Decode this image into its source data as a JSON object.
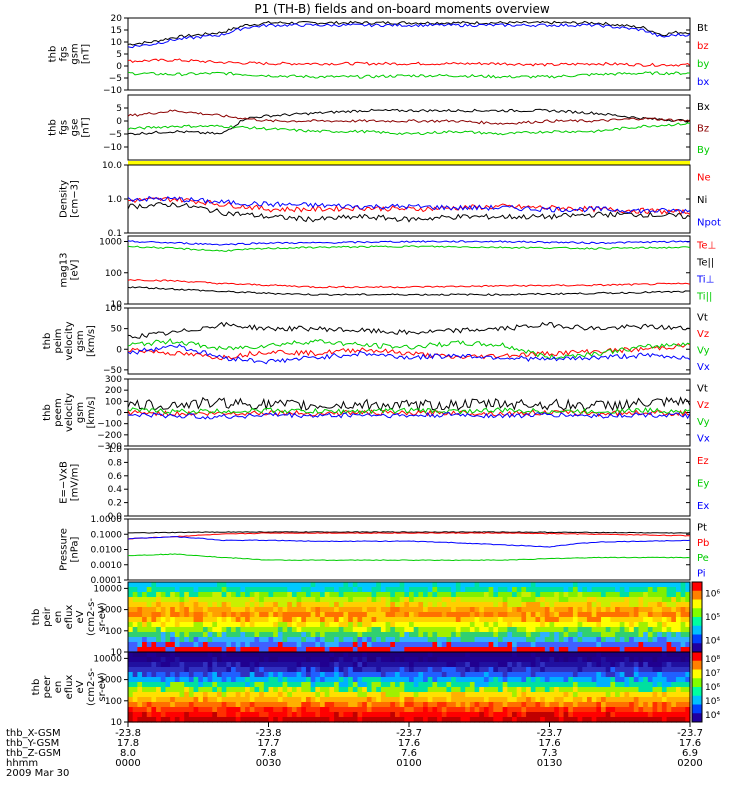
{
  "title": "P1 (TH-B) fields and on-board moments overview",
  "date_label": "2009 Mar 30",
  "chart_data": [
    {
      "type": "line",
      "ylabel": [
        "thb",
        "fgs",
        "gsm",
        "[nT]"
      ],
      "ylim": [
        -10,
        20
      ],
      "yticks": [
        -10,
        -5,
        0,
        5,
        10,
        15,
        20
      ],
      "ytick_labels": [
        "−10",
        "−5",
        "0",
        "5",
        "10",
        "15",
        "20"
      ],
      "series": [
        {
          "name": "Bt",
          "color": "#000000",
          "x": [
            0,
            5,
            10,
            15,
            20,
            25,
            30,
            40,
            50,
            60,
            70,
            80,
            90,
            100,
            110,
            114,
            117,
            120
          ],
          "y": [
            9,
            10,
            12,
            13,
            14,
            17,
            18,
            18,
            18,
            18,
            18,
            18,
            18,
            18,
            16,
            13,
            14,
            14
          ]
        },
        {
          "name": "bz",
          "color": "#ff0000",
          "x": [
            0,
            10,
            20,
            30,
            40,
            50,
            60,
            70,
            80,
            90,
            100,
            110,
            120
          ],
          "y": [
            2,
            2.5,
            1.5,
            1,
            1,
            1,
            1,
            1,
            1,
            0.5,
            1,
            0.5,
            0.5
          ]
        },
        {
          "name": "by",
          "color": "#00cc00",
          "x": [
            0,
            10,
            20,
            30,
            40,
            50,
            60,
            70,
            80,
            90,
            100,
            110,
            120
          ],
          "y": [
            -3,
            -3.5,
            -3,
            -4,
            -4.5,
            -4.5,
            -4,
            -4,
            -4.5,
            -4.5,
            -3.5,
            -3,
            -3
          ]
        },
        {
          "name": "bx",
          "color": "#0000ff",
          "x": [
            0,
            5,
            10,
            15,
            20,
            25,
            30,
            40,
            50,
            60,
            70,
            80,
            90,
            100,
            110,
            114,
            117,
            120
          ],
          "y": [
            8,
            9,
            11,
            12,
            13,
            16,
            17,
            17,
            17,
            17,
            17,
            17,
            17,
            17,
            15,
            12,
            13,
            13
          ]
        }
      ]
    },
    {
      "type": "line",
      "ylabel": [
        "thb",
        "fgs",
        "gse",
        "[nT]"
      ],
      "ylim": [
        -15,
        10
      ],
      "yticks": [
        -10,
        -5,
        0,
        5
      ],
      "ytick_labels": [
        "−10",
        "−5",
        "0",
        "5"
      ],
      "series": [
        {
          "name": "Bx",
          "color": "#000000",
          "x": [
            0,
            10,
            20,
            25,
            30,
            40,
            50,
            60,
            70,
            80,
            90,
            100,
            110,
            120
          ],
          "y": [
            -5,
            -4,
            -5,
            1,
            2,
            3,
            4,
            4,
            4,
            4,
            4,
            3,
            1,
            0
          ]
        },
        {
          "name": "Bz",
          "color": "#8b0000",
          "x": [
            0,
            10,
            20,
            30,
            40,
            50,
            60,
            70,
            80,
            90,
            100,
            110,
            120
          ],
          "y": [
            2,
            4,
            2,
            0,
            0,
            0,
            0,
            0,
            -1,
            0,
            0,
            1,
            0
          ]
        },
        {
          "name": "By",
          "color": "#00cc00",
          "x": [
            0,
            10,
            20,
            30,
            40,
            50,
            60,
            70,
            80,
            90,
            100,
            110,
            120
          ],
          "y": [
            -3,
            -2,
            -2,
            -3,
            -4,
            -4,
            -5,
            -4,
            -5,
            -4,
            -4,
            -2,
            -1
          ]
        }
      ]
    },
    {
      "type": "line",
      "yscale": "log",
      "ylabel": [
        "Density",
        "[cm−3]"
      ],
      "ylim": [
        0.1,
        10
      ],
      "yticks": [
        0.1,
        1,
        10
      ],
      "ytick_labels": [
        "0.1",
        "1.0",
        "10.0"
      ],
      "series": [
        {
          "name": "Ne",
          "color": "#ff0000",
          "x": [
            0,
            10,
            20,
            30,
            40,
            50,
            60,
            70,
            80,
            90,
            100,
            110,
            120
          ],
          "y": [
            0.9,
            1.0,
            0.7,
            0.5,
            0.5,
            0.55,
            0.5,
            0.55,
            0.6,
            0.55,
            0.5,
            0.45,
            0.4
          ]
        },
        {
          "name": "Ni",
          "color": "#000000",
          "x": [
            0,
            10,
            20,
            30,
            40,
            50,
            60,
            70,
            80,
            90,
            100,
            110,
            120
          ],
          "y": [
            0.6,
            0.7,
            0.4,
            0.3,
            0.25,
            0.3,
            0.25,
            0.3,
            0.3,
            0.3,
            0.35,
            0.35,
            0.3
          ]
        },
        {
          "name": "Npot",
          "color": "#0000ff",
          "x": [
            0,
            10,
            20,
            30,
            40,
            50,
            60,
            70,
            80,
            90,
            100,
            110,
            120
          ],
          "y": [
            1.0,
            1.0,
            0.8,
            0.7,
            0.65,
            0.6,
            0.6,
            0.55,
            0.55,
            0.5,
            0.5,
            0.45,
            0.45
          ]
        }
      ]
    },
    {
      "type": "line",
      "yscale": "log",
      "ylabel": [
        "mag13",
        "[eV]"
      ],
      "ylim": [
        10,
        1500
      ],
      "yticks": [
        10,
        100,
        1000
      ],
      "ytick_labels": [
        "10",
        "100",
        "1000"
      ],
      "series": [
        {
          "name": "Te⊥",
          "color": "#ff0000",
          "x": [
            0,
            10,
            20,
            30,
            40,
            60,
            80,
            100,
            120
          ],
          "y": [
            60,
            55,
            45,
            40,
            35,
            35,
            38,
            40,
            45
          ]
        },
        {
          "name": "Te||",
          "color": "#000000",
          "x": [
            0,
            10,
            20,
            30,
            40,
            60,
            80,
            100,
            120
          ],
          "y": [
            35,
            30,
            25,
            22,
            20,
            20,
            20,
            22,
            25
          ]
        },
        {
          "name": "Ti⊥",
          "color": "#0000ff",
          "x": [
            0,
            10,
            20,
            30,
            40,
            60,
            80,
            100,
            120
          ],
          "y": [
            1000,
            900,
            800,
            900,
            900,
            1000,
            1000,
            900,
            1000
          ]
        },
        {
          "name": "Ti||",
          "color": "#00cc00",
          "x": [
            0,
            10,
            20,
            30,
            40,
            60,
            80,
            100,
            120
          ],
          "y": [
            700,
            600,
            500,
            600,
            650,
            700,
            650,
            600,
            650
          ]
        }
      ]
    },
    {
      "type": "line",
      "ylabel": [
        "thb",
        "peim",
        "velocity",
        "gsm",
        "[km/s]"
      ],
      "ylim": [
        -60,
        100
      ],
      "yticks": [
        -50,
        0,
        50,
        100
      ],
      "ytick_labels": [
        "−50",
        "0",
        "50",
        "100"
      ],
      "series": [
        {
          "name": "Vt",
          "color": "#000000",
          "x": [
            0,
            10,
            20,
            30,
            40,
            50,
            60,
            70,
            80,
            90,
            100,
            110,
            120
          ],
          "y": [
            30,
            40,
            60,
            50,
            50,
            45,
            40,
            45,
            50,
            60,
            50,
            55,
            50
          ]
        },
        {
          "name": "Vz",
          "color": "#ff0000",
          "x": [
            0,
            10,
            20,
            30,
            40,
            50,
            60,
            70,
            80,
            90,
            100,
            110,
            120
          ],
          "y": [
            0,
            -10,
            -20,
            -5,
            -10,
            0,
            -10,
            -20,
            -15,
            -10,
            -5,
            0,
            10
          ]
        },
        {
          "name": "Vy",
          "color": "#00cc00",
          "x": [
            0,
            10,
            20,
            30,
            40,
            50,
            60,
            70,
            80,
            90,
            100,
            110,
            120
          ],
          "y": [
            10,
            20,
            0,
            10,
            20,
            10,
            5,
            15,
            10,
            -20,
            -10,
            5,
            15
          ]
        },
        {
          "name": "Vx",
          "color": "#0000ff",
          "x": [
            0,
            10,
            20,
            30,
            40,
            50,
            60,
            70,
            80,
            90,
            100,
            110,
            120
          ],
          "y": [
            -10,
            10,
            -20,
            -30,
            -20,
            -10,
            -20,
            -15,
            -20,
            -25,
            -20,
            -15,
            -20
          ]
        }
      ]
    },
    {
      "type": "line",
      "ylabel": [
        "thb",
        "peem",
        "velocity",
        "gsm",
        "[km/s]"
      ],
      "ylim": [
        -300,
        300
      ],
      "yticks": [
        -300,
        -200,
        -100,
        0,
        100,
        200,
        300
      ],
      "ytick_labels": [
        "−300",
        "−200",
        "−100",
        "0",
        "100",
        "200",
        "300"
      ],
      "series": [
        {
          "name": "Vt",
          "color": "#000000",
          "x": [
            0,
            10,
            20,
            30,
            40,
            50,
            60,
            70,
            80,
            90,
            100,
            110,
            120
          ],
          "y": [
            60,
            70,
            90,
            70,
            60,
            70,
            60,
            70,
            80,
            70,
            60,
            80,
            90
          ]
        },
        {
          "name": "Vz",
          "color": "#ff0000",
          "x": [
            0,
            10,
            20,
            30,
            40,
            50,
            60,
            70,
            80,
            90,
            100,
            110,
            120
          ],
          "y": [
            0,
            -10,
            -10,
            0,
            -10,
            0,
            -10,
            0,
            -10,
            0,
            -10,
            0,
            -10
          ]
        },
        {
          "name": "Vy",
          "color": "#00cc00",
          "x": [
            0,
            10,
            20,
            30,
            40,
            50,
            60,
            70,
            80,
            90,
            100,
            110,
            120
          ],
          "y": [
            20,
            10,
            10,
            20,
            10,
            10,
            20,
            10,
            20,
            10,
            10,
            20,
            10
          ]
        },
        {
          "name": "Vx",
          "color": "#0000ff",
          "x": [
            0,
            10,
            20,
            30,
            40,
            50,
            60,
            70,
            80,
            90,
            100,
            110,
            120
          ],
          "y": [
            -20,
            -30,
            -40,
            -20,
            -30,
            -20,
            -30,
            -20,
            -30,
            -20,
            -30,
            -20,
            -30
          ]
        }
      ]
    },
    {
      "type": "line",
      "ylabel": [
        "E=−VxB",
        "[mV/m]"
      ],
      "ylim": [
        0,
        1
      ],
      "yticks": [
        0,
        0.2,
        0.4,
        0.6,
        0.8,
        1.0
      ],
      "ytick_labels": [
        "0.0",
        "0.2",
        "0.4",
        "0.6",
        "0.8",
        "1.0"
      ],
      "series": [
        {
          "name": "Ez",
          "color": "#ff0000",
          "x": [],
          "y": []
        },
        {
          "name": "Ey",
          "color": "#00cc00",
          "x": [],
          "y": []
        },
        {
          "name": "Ex",
          "color": "#0000ff",
          "x": [],
          "y": []
        }
      ]
    },
    {
      "type": "line",
      "yscale": "log",
      "ylabel": [
        "Pressure",
        "[nPa]"
      ],
      "ylim": [
        0.0001,
        1
      ],
      "yticks": [
        0.0001,
        0.001,
        0.01,
        0.1,
        1
      ],
      "ytick_labels": [
        "0.0001",
        "0.0010",
        "0.0100",
        "0.1000",
        "1.0000"
      ],
      "series": [
        {
          "name": "Pt",
          "color": "#000000",
          "x": [
            0,
            10,
            20,
            30,
            40,
            60,
            80,
            100,
            120
          ],
          "y": [
            0.12,
            0.13,
            0.14,
            0.14,
            0.14,
            0.14,
            0.14,
            0.13,
            0.12
          ]
        },
        {
          "name": "Pb",
          "color": "#ff0000",
          "x": [
            0,
            10,
            20,
            30,
            40,
            60,
            80,
            100,
            120
          ],
          "y": [
            0.05,
            0.07,
            0.1,
            0.12,
            0.12,
            0.12,
            0.12,
            0.1,
            0.08
          ]
        },
        {
          "name": "Pe",
          "color": "#00cc00",
          "x": [
            0,
            10,
            20,
            30,
            40,
            60,
            80,
            100,
            120
          ],
          "y": [
            0.004,
            0.005,
            0.003,
            0.002,
            0.002,
            0.002,
            0.002,
            0.003,
            0.003
          ]
        },
        {
          "name": "Pi",
          "color": "#0000ff",
          "x": [
            0,
            10,
            20,
            30,
            40,
            60,
            80,
            90,
            100,
            120
          ],
          "y": [
            0.05,
            0.07,
            0.04,
            0.04,
            0.035,
            0.035,
            0.02,
            0.015,
            0.03,
            0.04
          ]
        }
      ]
    },
    {
      "type": "heatmap",
      "ylabel": [
        "thb",
        "peir",
        "en",
        "eflux",
        "eV",
        "(cm2-s-",
        "sr-eV)"
      ],
      "yscale": "log",
      "ylim": [
        10,
        20000
      ],
      "ytick_labels": [
        "10",
        "100",
        "1000",
        "10000"
      ],
      "colorbar_labels": [
        "10⁴",
        "10⁵",
        "10⁶"
      ]
    },
    {
      "type": "heatmap",
      "ylabel": [
        "thb",
        "peer",
        "en",
        "eflux",
        "eV",
        "(cm2-s-",
        "sr-eV)"
      ],
      "yscale": "log",
      "ylim": [
        10,
        20000
      ],
      "ytick_labels": [
        "10",
        "100",
        "1000",
        "10000"
      ],
      "colorbar_labels": [
        "10⁴",
        "10⁵",
        "10⁶",
        "10⁷",
        "10⁸"
      ]
    }
  ],
  "ephemeris": {
    "row_labels": [
      "thb_X-GSM",
      "thb_Y-GSM",
      "thb_Z-GSM",
      "hhmm"
    ],
    "columns": [
      [
        "-23.8",
        "17.8",
        "8.0",
        "0000"
      ],
      [
        "-23.8",
        "17.7",
        "7.8",
        "0030"
      ],
      [
        "-23.7",
        "17.6",
        "7.6",
        "0100"
      ],
      [
        "-23.7",
        "17.6",
        "7.3",
        "0130"
      ],
      [
        "-23.7",
        "17.6",
        "6.9",
        "0200"
      ]
    ]
  }
}
